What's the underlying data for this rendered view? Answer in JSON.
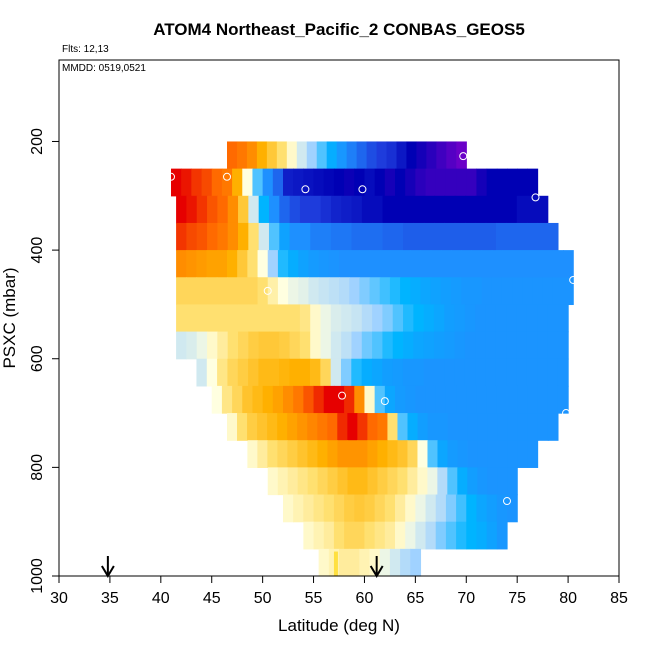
{
  "chart_data": {
    "type": "heatmap",
    "title": "ATOM4 Northeast_Pacific_2 CONBAS_GEOS5",
    "flights_note": "Flts: 12,13",
    "dates_note": "MMDD: 0519,0521",
    "xlabel": "Latitude (deg N)",
    "ylabel": "PSXC (mbar)",
    "xlim": [
      30,
      85
    ],
    "ylim": [
      1000,
      50
    ],
    "x_ticks": [
      30,
      35,
      40,
      45,
      50,
      55,
      60,
      65,
      70,
      75,
      80,
      85
    ],
    "y_ticks": [
      200,
      400,
      600,
      800,
      1000
    ],
    "grid": false,
    "color_scale": [
      "#6a00c8",
      "#0000b4",
      "#1e3cdc",
      "#1e90ff",
      "#00b4ff",
      "#a0d2ff",
      "#ffffe0",
      "#ffe070",
      "#ffb000",
      "#ff6a00",
      "#e60000"
    ],
    "pressure_rows": [
      225,
      275,
      325,
      375,
      425,
      475,
      525,
      575,
      625,
      675,
      725,
      775,
      825,
      875,
      925,
      975
    ],
    "lat_start": 30.5,
    "lat_step": 1,
    "rows": [
      {
        "p": 225,
        "start": 46.5,
        "end": 70,
        "values": [
          0.9,
          0.88,
          0.85,
          0.8,
          0.75,
          0.7,
          0.62,
          0.55,
          0.5,
          0.45,
          0.38,
          0.32,
          0.28,
          0.25,
          0.22,
          0.2,
          0.18,
          0.14,
          0.1,
          0.08,
          0.06,
          0.04,
          0.02,
          0.0
        ]
      },
      {
        "p": 275,
        "start": 41,
        "end": 77,
        "values": [
          1.0,
          0.98,
          0.95,
          0.93,
          0.9,
          0.88,
          0.8,
          0.6,
          0.45,
          0.3,
          0.25,
          0.15,
          0.14,
          0.13,
          0.12,
          0.11,
          0.1,
          0.09,
          0.1,
          0.12,
          0.1,
          0.08,
          0.1,
          0.08,
          0.06,
          0.05,
          0.05,
          0.05,
          0.05,
          0.05,
          0.08,
          0.1,
          0.1,
          0.1,
          0.1,
          0.1
        ]
      },
      {
        "p": 325,
        "start": 41.5,
        "end": 78,
        "values": [
          1.0,
          0.98,
          0.95,
          0.92,
          0.9,
          0.85,
          0.75,
          0.55,
          0.4,
          0.3,
          0.25,
          0.22,
          0.2,
          0.2,
          0.18,
          0.16,
          0.15,
          0.14,
          0.12,
          0.12,
          0.1,
          0.1,
          0.1,
          0.1,
          0.1,
          0.1,
          0.1,
          0.1,
          0.1,
          0.1,
          0.1,
          0.1,
          0.1,
          0.12,
          0.12,
          0.12
        ]
      },
      {
        "p": 375,
        "start": 41.5,
        "end": 79,
        "values": [
          0.95,
          0.93,
          0.92,
          0.9,
          0.88,
          0.85,
          0.8,
          0.7,
          0.55,
          0.45,
          0.35,
          0.3,
          0.3,
          0.28,
          0.28,
          0.27,
          0.27,
          0.26,
          0.26,
          0.26,
          0.25,
          0.25,
          0.24,
          0.24,
          0.24,
          0.24,
          0.24,
          0.24,
          0.24,
          0.24,
          0.24,
          0.25,
          0.25,
          0.25,
          0.25,
          0.25,
          0.25
        ]
      },
      {
        "p": 425,
        "start": 41.5,
        "end": 80.5,
        "values": [
          0.85,
          0.84,
          0.83,
          0.82,
          0.82,
          0.8,
          0.75,
          0.7,
          0.6,
          0.5,
          0.42,
          0.38,
          0.35,
          0.33,
          0.32,
          0.31,
          0.3,
          0.3,
          0.3,
          0.3,
          0.3,
          0.3,
          0.3,
          0.3,
          0.3,
          0.3,
          0.3,
          0.3,
          0.3,
          0.3,
          0.3,
          0.3,
          0.3,
          0.3,
          0.3,
          0.3,
          0.3,
          0.3,
          0.3
        ]
      },
      {
        "p": 475,
        "start": 41.5,
        "end": 80.5,
        "values": [
          0.72,
          0.72,
          0.72,
          0.72,
          0.72,
          0.72,
          0.72,
          0.72,
          0.7,
          0.65,
          0.6,
          0.58,
          0.57,
          0.55,
          0.54,
          0.53,
          0.52,
          0.5,
          0.48,
          0.46,
          0.44,
          0.42,
          0.4,
          0.38,
          0.36,
          0.35,
          0.34,
          0.33,
          0.32,
          0.32,
          0.31,
          0.31,
          0.31,
          0.31,
          0.31,
          0.31,
          0.31,
          0.31,
          0.31
        ]
      },
      {
        "p": 525,
        "start": 41.5,
        "end": 80,
        "values": [
          0.7,
          0.7,
          0.7,
          0.7,
          0.7,
          0.7,
          0.7,
          0.7,
          0.7,
          0.7,
          0.7,
          0.7,
          0.68,
          0.62,
          0.58,
          0.56,
          0.55,
          0.54,
          0.52,
          0.5,
          0.48,
          0.45,
          0.42,
          0.4,
          0.38,
          0.36,
          0.34,
          0.33,
          0.32,
          0.31,
          0.31,
          0.31,
          0.31,
          0.31,
          0.31,
          0.31,
          0.31,
          0.31
        ]
      },
      {
        "p": 575,
        "start": 41.5,
        "end": 80,
        "values": [
          0.55,
          0.56,
          0.58,
          0.62,
          0.66,
          0.7,
          0.72,
          0.74,
          0.75,
          0.75,
          0.74,
          0.72,
          0.7,
          0.62,
          0.58,
          0.55,
          0.53,
          0.5,
          0.47,
          0.45,
          0.42,
          0.4,
          0.38,
          0.36,
          0.35,
          0.34,
          0.33,
          0.32,
          0.31,
          0.31,
          0.31,
          0.31,
          0.31,
          0.31,
          0.31,
          0.31,
          0.31,
          0.31
        ]
      },
      {
        "p": 625,
        "start": 43.5,
        "end": 80,
        "values": [
          0.55,
          0.6,
          0.68,
          0.72,
          0.74,
          0.76,
          0.78,
          0.78,
          0.79,
          0.8,
          0.8,
          0.78,
          0.72,
          0.55,
          0.48,
          0.42,
          0.38,
          0.36,
          0.34,
          0.33,
          0.32,
          0.32,
          0.31,
          0.31,
          0.31,
          0.31,
          0.31,
          0.31,
          0.31,
          0.31,
          0.31,
          0.31,
          0.31,
          0.31,
          0.31,
          0.31
        ]
      },
      {
        "p": 675,
        "start": 45,
        "end": 80,
        "values": [
          0.6,
          0.68,
          0.72,
          0.76,
          0.78,
          0.8,
          0.82,
          0.85,
          0.88,
          0.92,
          0.96,
          1.0,
          1.0,
          0.96,
          0.85,
          0.62,
          0.45,
          0.36,
          0.33,
          0.32,
          0.31,
          0.31,
          0.31,
          0.31,
          0.31,
          0.31,
          0.31,
          0.31,
          0.31,
          0.31,
          0.31,
          0.31,
          0.31,
          0.31,
          0.31
        ]
      },
      {
        "p": 725,
        "start": 46.5,
        "end": 79,
        "values": [
          0.62,
          0.7,
          0.74,
          0.76,
          0.78,
          0.8,
          0.82,
          0.84,
          0.86,
          0.88,
          0.9,
          0.96,
          1.0,
          0.95,
          0.9,
          0.88,
          0.7,
          0.45,
          0.38,
          0.34,
          0.32,
          0.32,
          0.31,
          0.31,
          0.31,
          0.31,
          0.31,
          0.31,
          0.31,
          0.31,
          0.31,
          0.31,
          0.31
        ]
      },
      {
        "p": 775,
        "start": 48.5,
        "end": 77,
        "values": [
          0.62,
          0.66,
          0.7,
          0.72,
          0.74,
          0.76,
          0.78,
          0.8,
          0.82,
          0.84,
          0.84,
          0.84,
          0.82,
          0.8,
          0.78,
          0.76,
          0.72,
          0.6,
          0.45,
          0.36,
          0.33,
          0.32,
          0.31,
          0.31,
          0.31,
          0.31,
          0.31,
          0.31,
          0.31
        ]
      },
      {
        "p": 825,
        "start": 50.5,
        "end": 75,
        "values": [
          0.62,
          0.64,
          0.66,
          0.68,
          0.7,
          0.72,
          0.74,
          0.76,
          0.78,
          0.78,
          0.76,
          0.74,
          0.72,
          0.7,
          0.66,
          0.62,
          0.58,
          0.52,
          0.45,
          0.38,
          0.34,
          0.32,
          0.31,
          0.31,
          0.31
        ]
      },
      {
        "p": 875,
        "start": 52,
        "end": 75,
        "values": [
          0.62,
          0.64,
          0.66,
          0.68,
          0.7,
          0.72,
          0.74,
          0.75,
          0.74,
          0.72,
          0.7,
          0.66,
          0.62,
          0.58,
          0.55,
          0.52,
          0.48,
          0.44,
          0.4,
          0.36,
          0.34,
          0.32,
          0.31
        ]
      },
      {
        "p": 925,
        "start": 54,
        "end": 74,
        "values": [
          0.62,
          0.64,
          0.66,
          0.7,
          0.72,
          0.72,
          0.7,
          0.68,
          0.66,
          0.62,
          0.58,
          0.55,
          0.52,
          0.48,
          0.45,
          0.42,
          0.4,
          0.38,
          0.35,
          0.32
        ]
      },
      {
        "p": 975,
        "start": 55.5,
        "end": 65.5,
        "values": [
          0.62,
          0.64,
          0.66,
          0.66,
          0.64,
          0.62,
          0.58,
          0.55,
          0.52,
          0.5
        ]
      }
    ],
    "markers": [
      {
        "lat": 69.7,
        "p": 227
      },
      {
        "lat": 41.0,
        "p": 265
      },
      {
        "lat": 46.5,
        "p": 265
      },
      {
        "lat": 54.2,
        "p": 288
      },
      {
        "lat": 59.8,
        "p": 288
      },
      {
        "lat": 76.8,
        "p": 303
      },
      {
        "lat": 80.5,
        "p": 455
      },
      {
        "lat": 50.5,
        "p": 475
      },
      {
        "lat": 57.8,
        "p": 668
      },
      {
        "lat": 62.0,
        "p": 678
      },
      {
        "lat": 79.8,
        "p": 700
      },
      {
        "lat": 74.0,
        "p": 862
      }
    ],
    "surface_bar": {
      "lat": 57.2,
      "p_from": 955,
      "p_to": 1000,
      "color": "#ffe040"
    },
    "arrows": [
      34.8,
      61.2
    ]
  }
}
